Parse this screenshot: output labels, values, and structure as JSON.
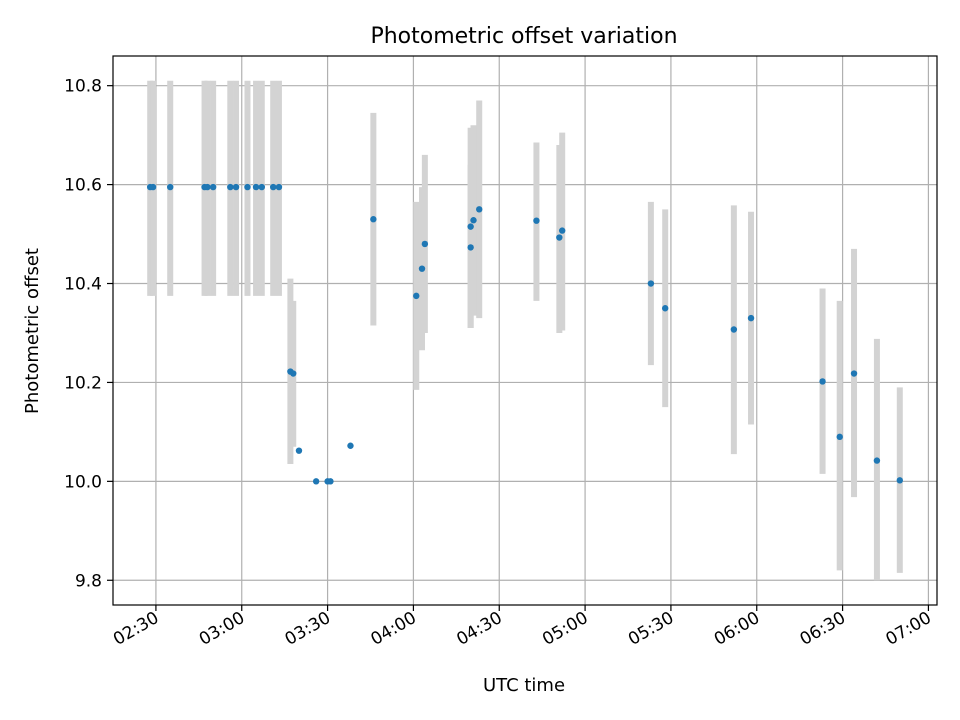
{
  "chart_data": {
    "type": "scatter",
    "title": "Photometric offset variation",
    "xlabel": "UTC time",
    "ylabel": "Photometric offset",
    "xlim": [
      "02:15",
      "07:03"
    ],
    "ylim": [
      9.75,
      10.86
    ],
    "xticks": [
      "02:30",
      "03:00",
      "03:30",
      "04:00",
      "04:30",
      "05:00",
      "05:30",
      "06:00",
      "06:30",
      "07:00"
    ],
    "yticks": [
      9.8,
      10.0,
      10.2,
      10.4,
      10.6,
      10.8
    ],
    "grid": true,
    "marker_color": "#1f77b4",
    "errorbar_color": "#d3d3d3",
    "points": [
      {
        "t": "02:28",
        "y": 10.595,
        "lo": 10.375,
        "hi": 10.81
      },
      {
        "t": "02:29",
        "y": 10.595,
        "lo": 10.375,
        "hi": 10.81
      },
      {
        "t": "02:35",
        "y": 10.595,
        "lo": 10.375,
        "hi": 10.81
      },
      {
        "t": "02:47",
        "y": 10.595,
        "lo": 10.375,
        "hi": 10.81
      },
      {
        "t": "02:48",
        "y": 10.595,
        "lo": 10.375,
        "hi": 10.81
      },
      {
        "t": "02:50",
        "y": 10.595,
        "lo": 10.375,
        "hi": 10.81
      },
      {
        "t": "02:56",
        "y": 10.595,
        "lo": 10.375,
        "hi": 10.81
      },
      {
        "t": "02:58",
        "y": 10.595,
        "lo": 10.375,
        "hi": 10.81
      },
      {
        "t": "03:02",
        "y": 10.595,
        "lo": 10.375,
        "hi": 10.81
      },
      {
        "t": "03:05",
        "y": 10.595,
        "lo": 10.375,
        "hi": 10.81
      },
      {
        "t": "03:07",
        "y": 10.595,
        "lo": 10.375,
        "hi": 10.81
      },
      {
        "t": "03:11",
        "y": 10.595,
        "lo": 10.375,
        "hi": 10.81
      },
      {
        "t": "03:13",
        "y": 10.595,
        "lo": 10.375,
        "hi": 10.81
      },
      {
        "t": "03:17",
        "y": 10.222,
        "lo": 10.035,
        "hi": 10.41
      },
      {
        "t": "03:18",
        "y": 10.218,
        "lo": 10.07,
        "hi": 10.365
      },
      {
        "t": "03:20",
        "y": 10.062,
        "lo": 10.062,
        "hi": 10.062
      },
      {
        "t": "03:26",
        "y": 10.0,
        "lo": 10.0,
        "hi": 10.0
      },
      {
        "t": "03:30",
        "y": 10.0,
        "lo": 10.0,
        "hi": 10.0
      },
      {
        "t": "03:31",
        "y": 10.0,
        "lo": 10.0,
        "hi": 10.0
      },
      {
        "t": "03:38",
        "y": 10.072,
        "lo": 10.072,
        "hi": 10.072
      },
      {
        "t": "03:46",
        "y": 10.53,
        "lo": 10.315,
        "hi": 10.745
      },
      {
        "t": "04:01",
        "y": 10.375,
        "lo": 10.185,
        "hi": 10.565
      },
      {
        "t": "04:03",
        "y": 10.43,
        "lo": 10.265,
        "hi": 10.595
      },
      {
        "t": "04:04",
        "y": 10.48,
        "lo": 10.3,
        "hi": 10.66
      },
      {
        "t": "04:20",
        "y": 10.473,
        "lo": 10.31,
        "hi": 10.64
      },
      {
        "t": "04:20",
        "y": 10.515,
        "lo": 10.31,
        "hi": 10.715
      },
      {
        "t": "04:21",
        "y": 10.528,
        "lo": 10.335,
        "hi": 10.72
      },
      {
        "t": "04:23",
        "y": 10.55,
        "lo": 10.33,
        "hi": 10.77
      },
      {
        "t": "04:43",
        "y": 10.527,
        "lo": 10.365,
        "hi": 10.685
      },
      {
        "t": "04:51",
        "y": 10.493,
        "lo": 10.3,
        "hi": 10.68
      },
      {
        "t": "04:52",
        "y": 10.507,
        "lo": 10.305,
        "hi": 10.705
      },
      {
        "t": "05:23",
        "y": 10.4,
        "lo": 10.235,
        "hi": 10.565
      },
      {
        "t": "05:28",
        "y": 10.35,
        "lo": 10.15,
        "hi": 10.55
      },
      {
        "t": "05:52",
        "y": 10.307,
        "lo": 10.055,
        "hi": 10.558
      },
      {
        "t": "05:58",
        "y": 10.33,
        "lo": 10.115,
        "hi": 10.545
      },
      {
        "t": "06:23",
        "y": 10.202,
        "lo": 10.015,
        "hi": 10.39
      },
      {
        "t": "06:29",
        "y": 10.09,
        "lo": 9.82,
        "hi": 10.365
      },
      {
        "t": "06:34",
        "y": 10.218,
        "lo": 9.968,
        "hi": 10.47
      },
      {
        "t": "06:42",
        "y": 10.042,
        "lo": 9.8,
        "hi": 10.288
      },
      {
        "t": "06:50",
        "y": 10.002,
        "lo": 9.815,
        "hi": 10.19
      }
    ]
  }
}
